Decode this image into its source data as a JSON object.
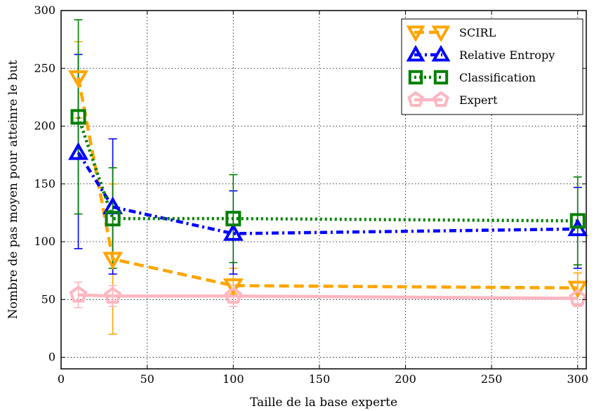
{
  "chart_data": {
    "type": "line",
    "xlabel": "Taille de la base experte",
    "ylabel": "Nombre de pas moyen pour atteinre le but",
    "xlim": [
      0,
      305
    ],
    "ylim": [
      -10,
      300
    ],
    "xticks": [
      0,
      50,
      100,
      150,
      200,
      250,
      300
    ],
    "yticks": [
      0,
      50,
      100,
      150,
      200,
      250,
      300
    ],
    "grid": true,
    "legend_position": "top-right",
    "series": [
      {
        "name": "SCIRL",
        "color": "#FFA500",
        "linestyle": "dashed",
        "marker": "triangle-down",
        "x": [
          10,
          30,
          100,
          300
        ],
        "y": [
          242,
          85,
          62,
          60
        ],
        "err_low": [
          207,
          20,
          55,
          55
        ],
        "err_high": [
          273,
          150,
          77,
          73
        ]
      },
      {
        "name": "Relative Entropy",
        "color": "#0000FF",
        "linestyle": "dashdot",
        "marker": "triangle-up",
        "x": [
          10,
          30,
          100,
          300
        ],
        "y": [
          177,
          130,
          107,
          111
        ],
        "err_low": [
          94,
          72,
          72,
          77
        ],
        "err_high": [
          262,
          189,
          144,
          147
        ]
      },
      {
        "name": "Classification",
        "color": "#008000",
        "linestyle": "dotted",
        "marker": "square",
        "x": [
          10,
          30,
          100,
          300
        ],
        "y": [
          208,
          120,
          120,
          118
        ],
        "err_low": [
          124,
          77,
          82,
          80
        ],
        "err_high": [
          292,
          164,
          158,
          156
        ]
      },
      {
        "name": "Expert",
        "color": "#FFB6C1",
        "linestyle": "solid",
        "marker": "pentagon",
        "x": [
          10,
          30,
          100,
          300
        ],
        "y": [
          54,
          53,
          53,
          51
        ],
        "err_low": [
          43,
          44,
          44,
          44
        ],
        "err_high": [
          65,
          62,
          62,
          58
        ]
      }
    ]
  }
}
